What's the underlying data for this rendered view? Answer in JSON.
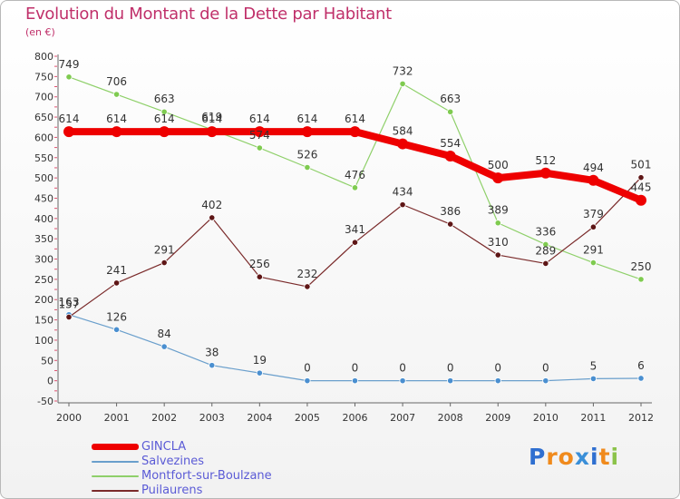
{
  "title": "Evolution du Montant de la Dette par Habitant",
  "subtitle": "(en €)",
  "logo_letters": [
    "P",
    "r",
    "o",
    "x",
    "i",
    "t",
    "i"
  ],
  "logo_colors": [
    "#2f6fd0",
    "#f08a1c",
    "#f08a1c",
    "#3a8fd8",
    "#2f6fd0",
    "#f08a1c",
    "#8bc34a"
  ],
  "chart_data": {
    "type": "line",
    "x": [
      "2000",
      "2001",
      "2002",
      "2003",
      "2004",
      "2005",
      "2006",
      "2007",
      "2008",
      "2009",
      "2010",
      "2011",
      "2012"
    ],
    "ylim": [
      -50,
      800
    ],
    "yticks": [
      -50,
      0,
      50,
      100,
      150,
      200,
      250,
      300,
      350,
      400,
      450,
      500,
      550,
      600,
      650,
      700,
      750,
      800
    ],
    "grid": false,
    "legend": "bottom-left",
    "series": [
      {
        "name": "Salvezines",
        "color": "#6a9fcc",
        "dot": "#4a8fd0",
        "width": 1.2,
        "values": [
          163,
          126,
          84,
          38,
          19,
          0,
          0,
          0,
          0,
          0,
          0,
          5,
          6
        ]
      },
      {
        "name": "Montfort-sur-Boulzane",
        "color": "#8fd06a",
        "dot": "#7fcb50",
        "width": 1.2,
        "values": [
          749,
          706,
          663,
          619,
          574,
          526,
          476,
          732,
          663,
          389,
          336,
          291,
          250
        ]
      },
      {
        "name": "Puilaurens",
        "color": "#7a2a2a",
        "dot": "#5e1616",
        "width": 1.2,
        "values": [
          157,
          241,
          291,
          402,
          256,
          232,
          341,
          434,
          386,
          310,
          289,
          379,
          501
        ]
      },
      {
        "name": "GINCLA",
        "color": "#ee0000",
        "dot": "#ee0000",
        "width": 8,
        "values": [
          614,
          614,
          614,
          614,
          614,
          614,
          614,
          584,
          554,
          500,
          512,
          494,
          445
        ]
      }
    ],
    "legend_order": [
      "GINCLA",
      "Salvezines",
      "Montfort-sur-Boulzane",
      "Puilaurens"
    ]
  }
}
